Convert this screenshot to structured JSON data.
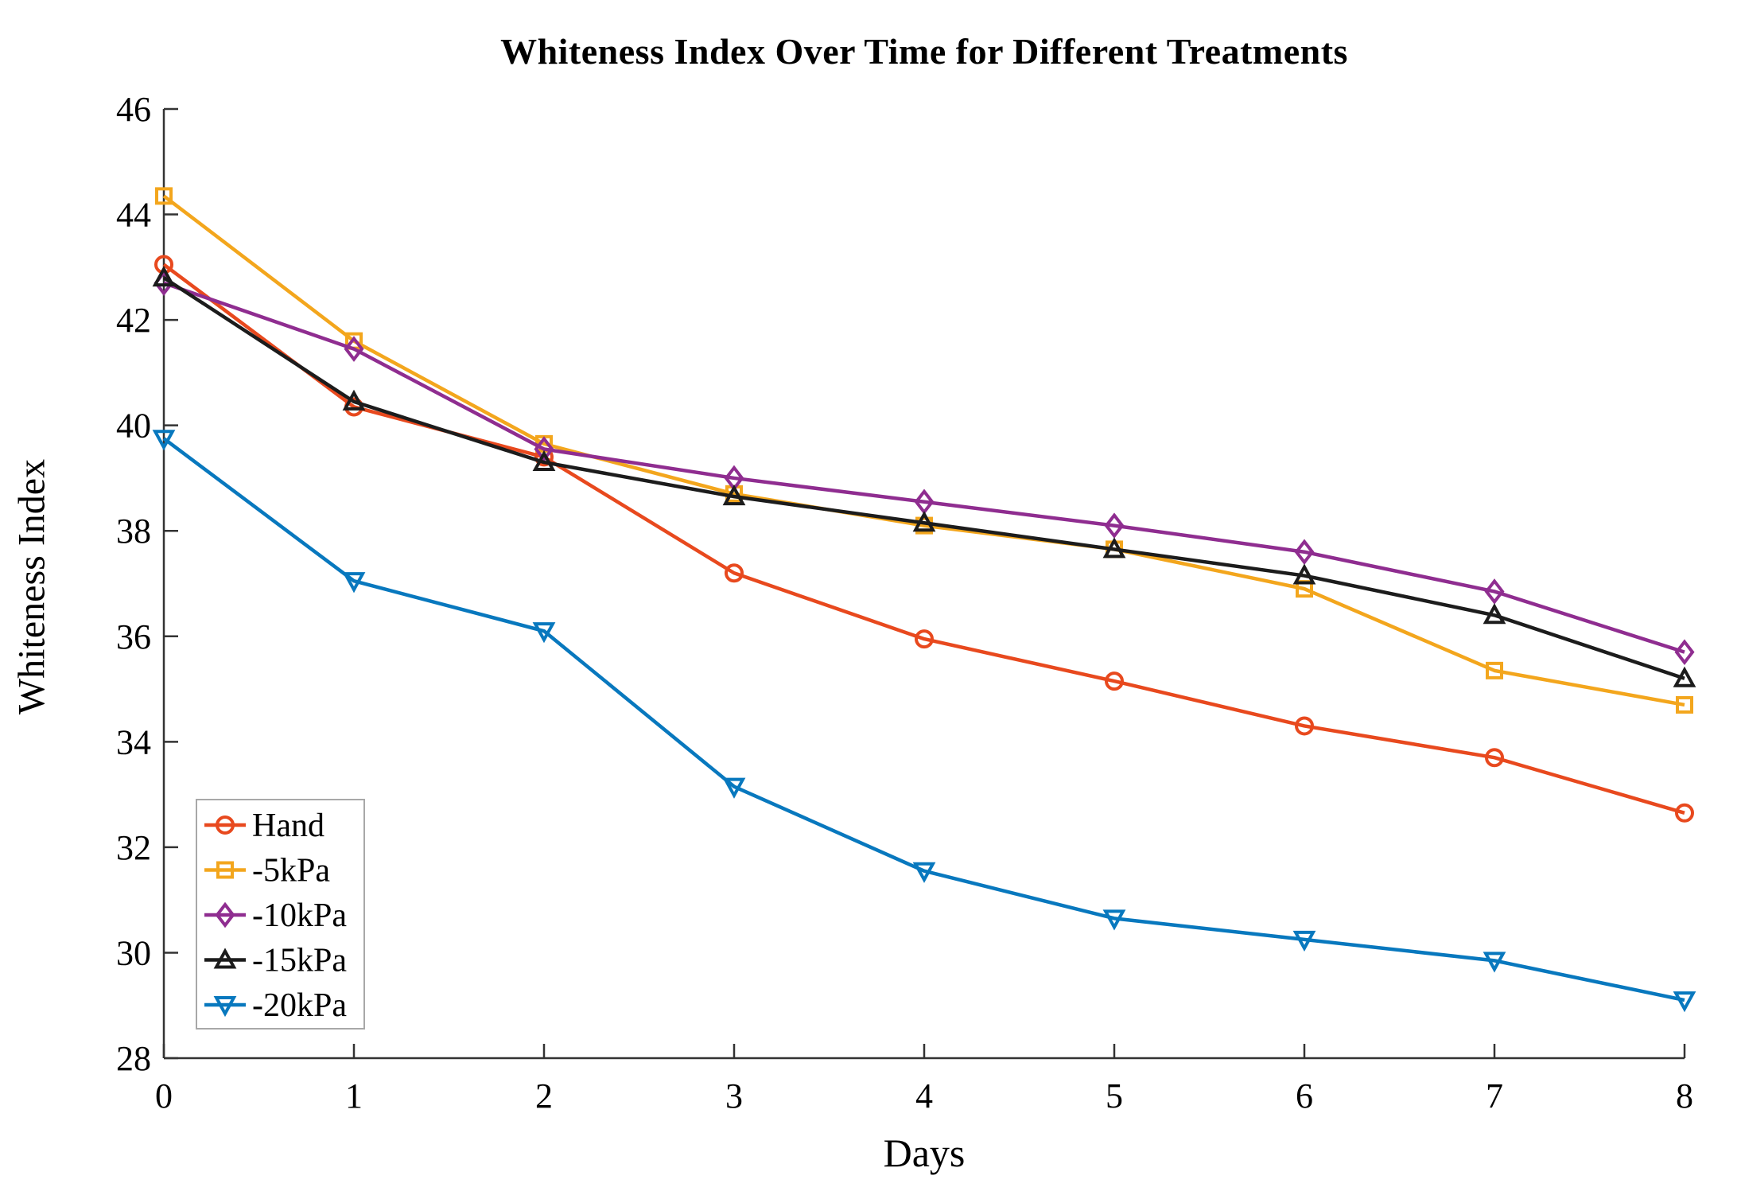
{
  "title": "Whiteness Index Over Time for Different Treatments",
  "chart_data": {
    "type": "line",
    "title": "Whiteness Index Over Time for Different Treatments",
    "xlabel": "Days",
    "ylabel": "Whiteness Index",
    "xlim": [
      0,
      8
    ],
    "ylim": [
      28,
      46
    ],
    "xticks": [
      0,
      1,
      2,
      3,
      4,
      5,
      6,
      7,
      8
    ],
    "yticks": [
      28,
      30,
      32,
      34,
      36,
      38,
      40,
      42,
      44,
      46
    ],
    "grid": false,
    "legend_position": "lower-left",
    "x": [
      0,
      1,
      2,
      3,
      4,
      5,
      6,
      7,
      8
    ],
    "series": [
      {
        "name": "Hand",
        "color": "#E8491E",
        "marker": "circle",
        "values": [
          43.05,
          40.35,
          39.4,
          37.2,
          35.95,
          35.15,
          34.3,
          33.7,
          32.65
        ]
      },
      {
        "name": "-5kPa",
        "color": "#F3A61D",
        "marker": "square",
        "values": [
          44.35,
          41.6,
          39.65,
          38.7,
          38.1,
          37.65,
          36.9,
          35.35,
          34.7
        ]
      },
      {
        "name": "-10kPa",
        "color": "#8F2D90",
        "marker": "diamond",
        "values": [
          42.7,
          41.45,
          39.55,
          39.0,
          38.55,
          38.1,
          37.6,
          36.85,
          35.7
        ]
      },
      {
        "name": "-15kPa",
        "color": "#1C1C1C",
        "marker": "triangle-up",
        "values": [
          42.8,
          40.45,
          39.3,
          38.65,
          38.15,
          37.65,
          37.15,
          36.4,
          35.2
        ]
      },
      {
        "name": "-20kPa",
        "color": "#0878BE",
        "marker": "triangle-down",
        "values": [
          39.75,
          37.05,
          36.1,
          33.15,
          31.55,
          30.65,
          30.25,
          29.85,
          29.1
        ]
      }
    ],
    "axis_color": "#333333"
  }
}
